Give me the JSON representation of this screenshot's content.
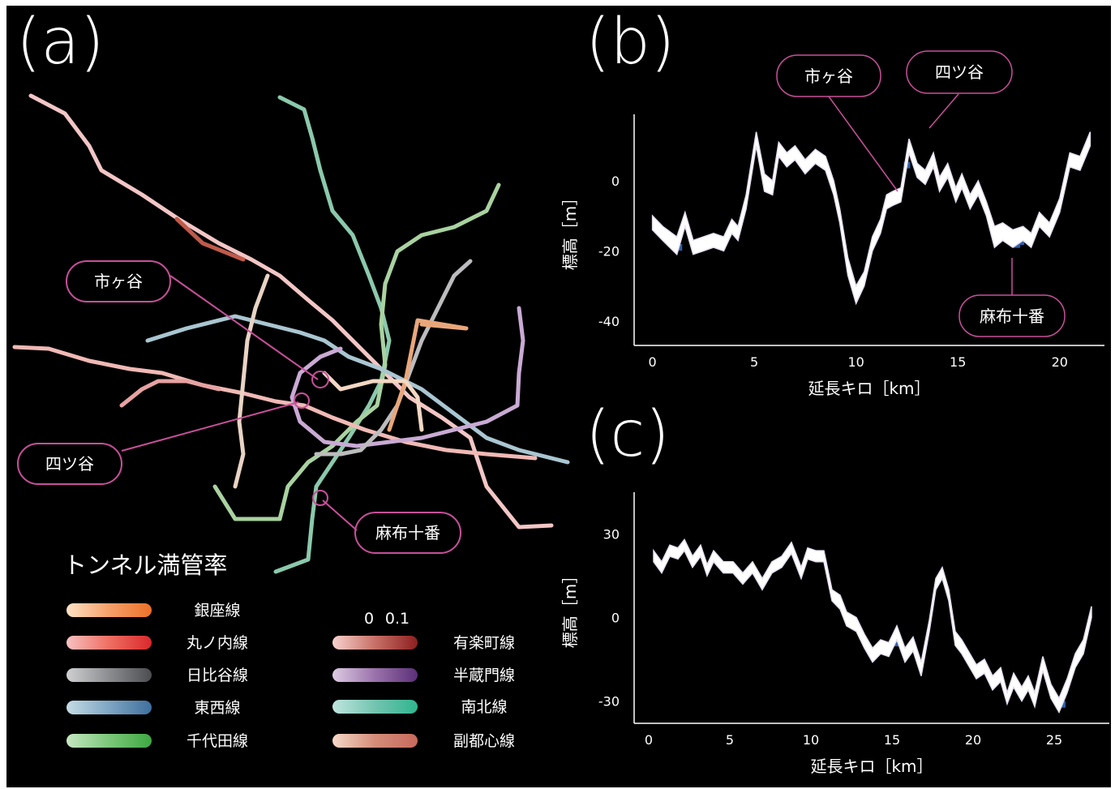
{
  "panels": {
    "a": "(a)",
    "b": "(b)",
    "c": "(c)"
  },
  "map": {
    "callouts": [
      "市ヶ谷",
      "四ツ谷",
      "麻布十番"
    ],
    "callout_color": "#c8509a"
  },
  "legend": {
    "title": "トンネル満管率",
    "scale_labels": [
      "0",
      "0.1"
    ],
    "lines": [
      {
        "name": "銀座線",
        "colors": [
          "#fde2c6",
          "#f6a06a",
          "#ec7128"
        ]
      },
      {
        "name": "丸ノ内線",
        "colors": [
          "#f6c1c1",
          "#ef6f63",
          "#d9282b"
        ]
      },
      {
        "name": "日比谷線",
        "colors": [
          "#cfd0d2",
          "#8c8d90",
          "#4c4d51"
        ]
      },
      {
        "name": "東西線",
        "colors": [
          "#c4dbe4",
          "#7ea6c4",
          "#3f6f9e"
        ]
      },
      {
        "name": "千代田線",
        "colors": [
          "#c6e8c2",
          "#7cc77a",
          "#3ea842"
        ]
      },
      {
        "name": "有楽町線",
        "colors": [
          "#f8d2cf",
          "#c77067",
          "#8c1f20"
        ]
      },
      {
        "name": "半蔵門線",
        "colors": [
          "#ddcbe3",
          "#9a72ab",
          "#5c2f78"
        ]
      },
      {
        "name": "南北線",
        "colors": [
          "#bfe5df",
          "#73c4b0",
          "#2fb58e"
        ]
      },
      {
        "name": "副都心線",
        "colors": [
          "#f6d9c8",
          "#d48c79",
          "#c86a5c"
        ]
      }
    ]
  },
  "chart_data": [
    {
      "type": "area",
      "panel": "(b)",
      "xlabel": "延長キロ［km］",
      "ylabel": "標高［m］",
      "xticks": [
        0,
        5,
        10,
        15,
        20
      ],
      "yticks": [
        0,
        -20,
        -40
      ],
      "xlim": [
        -0.9,
        22.2
      ],
      "ylim": [
        -47,
        19
      ],
      "series": [
        {
          "x": [
            0,
            0.5,
            1.2,
            1.6,
            2.0,
            2.5,
            3.0,
            3.5,
            3.9,
            4.2,
            4.6,
            5.1,
            5.5,
            5.9,
            6.2,
            6.6,
            7.0,
            7.5,
            8.0,
            8.5,
            8.9,
            9.2,
            9.6,
            10.0,
            10.4,
            10.8,
            11.2,
            11.5,
            11.8,
            12.2,
            12.6,
            13.0,
            13.4,
            13.8,
            14.1,
            14.5,
            14.9,
            15.2,
            15.6,
            16.0,
            16.4,
            16.8,
            17.2,
            17.7,
            18.2,
            18.6,
            19.0,
            19.5,
            20.0,
            20.5,
            21.0,
            21.5
          ],
          "upper": [
            -10,
            -13,
            -16,
            -9,
            -17,
            -16,
            -15,
            -16,
            -11,
            -13,
            -4,
            14,
            2,
            0,
            11,
            8,
            10,
            6,
            9,
            7,
            0,
            -8,
            -22,
            -30,
            -26,
            -16,
            -11,
            -4,
            -3,
            -2,
            12,
            5,
            3,
            8,
            1,
            5,
            -2,
            2,
            -4,
            0,
            -6,
            -13,
            -12,
            -14,
            -13,
            -15,
            -9,
            -12,
            -5,
            8,
            7,
            14
          ],
          "lower": [
            -14,
            -17,
            -21,
            -13,
            -21,
            -20,
            -19,
            -20,
            -15,
            -17,
            -8,
            10,
            -3,
            -4,
            7,
            4,
            6,
            2,
            5,
            3,
            -4,
            -12,
            -27,
            -35,
            -30,
            -20,
            -15,
            -8,
            -7,
            -6,
            8,
            1,
            -1,
            4,
            -3,
            1,
            -6,
            -2,
            -8,
            -4,
            -10,
            -19,
            -17,
            -19,
            -17,
            -19,
            -13,
            -16,
            -9,
            4,
            3,
            10
          ],
          "deep": [
            1.3,
            12.5,
            17.9,
            18.1
          ]
        }
      ]
    },
    {
      "type": "area",
      "panel": "(c)",
      "xlabel": "延長キロ［km］",
      "ylabel": "標高［m］",
      "xticks": [
        0,
        5,
        10,
        15,
        20,
        25
      ],
      "yticks": [
        30,
        0,
        -30
      ],
      "xlim": [
        -0.9,
        28.4
      ],
      "ylim": [
        -38,
        45
      ],
      "series": [
        {
          "x": [
            0.3,
            0.8,
            1.3,
            1.8,
            2.2,
            2.7,
            3.2,
            3.6,
            4.0,
            4.6,
            5.2,
            5.8,
            6.4,
            7.0,
            7.6,
            8.2,
            8.8,
            9.4,
            9.8,
            10.3,
            10.8,
            11.3,
            11.8,
            12.2,
            12.8,
            13.3,
            13.8,
            14.3,
            14.8,
            15.3,
            15.8,
            16.3,
            16.8,
            17.3,
            17.7,
            18.1,
            18.5,
            18.9,
            19.3,
            19.7,
            20.2,
            20.7,
            21.2,
            21.7,
            22.1,
            22.5,
            23.0,
            23.4,
            23.8,
            24.3,
            24.8,
            25.3,
            25.8,
            26.3,
            26.8,
            27.3
          ],
          "upper": [
            24,
            20,
            26,
            25,
            28,
            22,
            26,
            19,
            24,
            20,
            20,
            16,
            20,
            14,
            20,
            22,
            27,
            18,
            25,
            24,
            24,
            10,
            8,
            2,
            0,
            -6,
            -11,
            -8,
            -9,
            -3,
            -11,
            -7,
            -16,
            -1,
            14,
            18,
            10,
            -5,
            -8,
            -12,
            -17,
            -15,
            -21,
            -18,
            -27,
            -20,
            -25,
            -21,
            -27,
            -14,
            -24,
            -29,
            -22,
            -13,
            -8,
            4
          ],
          "lower": [
            20,
            16,
            22,
            21,
            24,
            18,
            22,
            15,
            20,
            16,
            16,
            12,
            16,
            10,
            16,
            18,
            23,
            14,
            21,
            20,
            20,
            6,
            3,
            -3,
            -5,
            -11,
            -16,
            -13,
            -14,
            -8,
            -16,
            -12,
            -21,
            -5,
            10,
            14,
            6,
            -10,
            -13,
            -17,
            -22,
            -20,
            -26,
            -23,
            -31,
            -25,
            -30,
            -26,
            -32,
            -19,
            -29,
            -34,
            -27,
            -18,
            -13,
            0
          ],
          "deep": [
            15.2,
            25.5
          ]
        }
      ]
    }
  ]
}
